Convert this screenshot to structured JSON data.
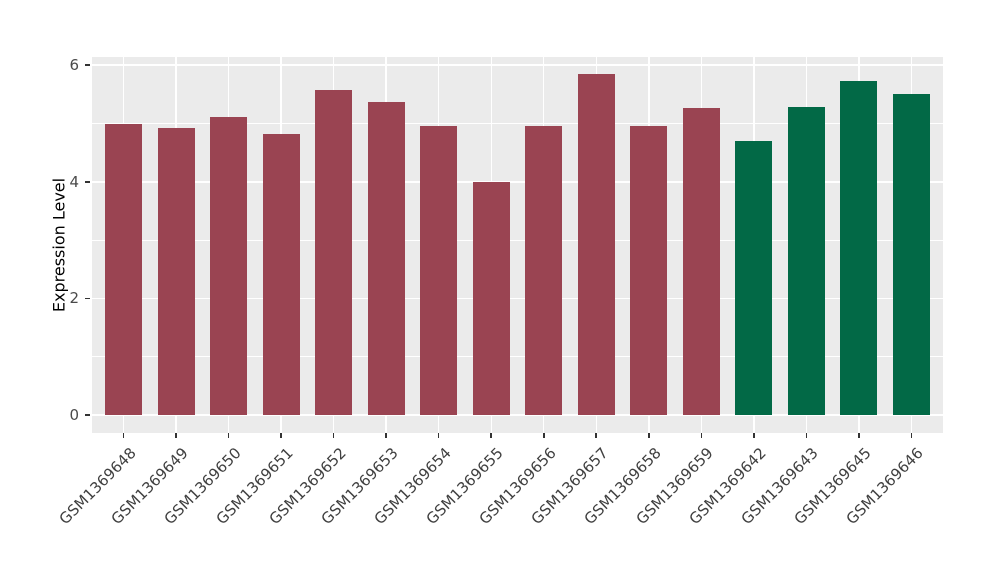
{
  "chart_data": {
    "type": "bar",
    "title": "",
    "xlabel": "",
    "ylabel": "Expression Level",
    "y_ticks": [
      0,
      2,
      4,
      6
    ],
    "y_minor_ticks": [
      1,
      3,
      5
    ],
    "ylim": [
      0,
      6.2
    ],
    "grid": true,
    "legend": false,
    "panel_bg": "#EBEBEB",
    "grid_color": "#FFFFFF",
    "tick_color": "#333333",
    "bars": [
      {
        "label": "GSM1369648",
        "value": 5.0,
        "color": "#9A4452"
      },
      {
        "label": "GSM1369649",
        "value": 4.93,
        "color": "#9A4452"
      },
      {
        "label": "GSM1369650",
        "value": 5.11,
        "color": "#9A4452"
      },
      {
        "label": "GSM1369651",
        "value": 4.82,
        "color": "#9A4452"
      },
      {
        "label": "GSM1369652",
        "value": 5.57,
        "color": "#9A4452"
      },
      {
        "label": "GSM1369653",
        "value": 5.37,
        "color": "#9A4452"
      },
      {
        "label": "GSM1369654",
        "value": 4.95,
        "color": "#9A4452"
      },
      {
        "label": "GSM1369655",
        "value": 4.0,
        "color": "#9A4452"
      },
      {
        "label": "GSM1369656",
        "value": 4.95,
        "color": "#9A4452"
      },
      {
        "label": "GSM1369657",
        "value": 5.85,
        "color": "#9A4452"
      },
      {
        "label": "GSM1369658",
        "value": 4.95,
        "color": "#9A4452"
      },
      {
        "label": "GSM1369659",
        "value": 5.27,
        "color": "#9A4452"
      },
      {
        "label": "GSM1369642",
        "value": 4.7,
        "color": "#026946"
      },
      {
        "label": "GSM1369643",
        "value": 5.28,
        "color": "#026946"
      },
      {
        "label": "GSM1369645",
        "value": 5.73,
        "color": "#026946"
      },
      {
        "label": "GSM1369646",
        "value": 5.51,
        "color": "#026946"
      }
    ]
  }
}
